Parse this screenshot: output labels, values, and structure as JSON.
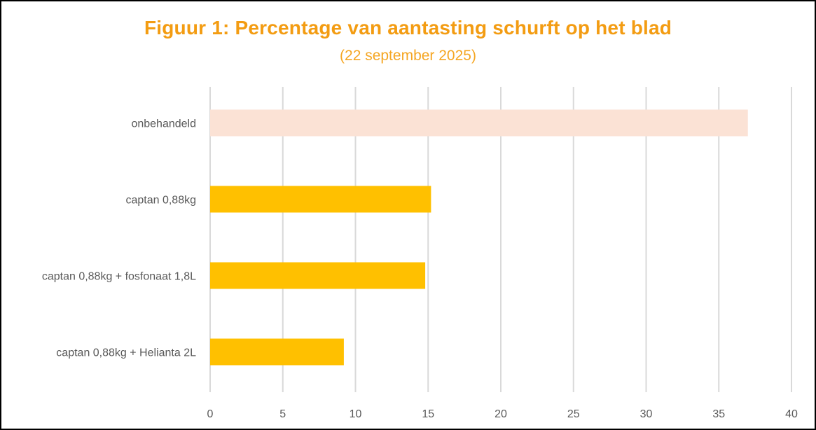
{
  "chart_data": {
    "type": "bar",
    "orientation": "horizontal",
    "title": "Figuur 1: Percentage van aantasting schurft op het blad",
    "subtitle": "(22 september 2025)",
    "categories": [
      "onbehandeld",
      "captan 0,88kg",
      "captan 0,88kg + fosfonaat 1,8L",
      "captan 0,88kg + Helianta 2L"
    ],
    "values": [
      37,
      15.2,
      14.8,
      9.2
    ],
    "bar_colors": [
      "#FBE2D5",
      "#FFC000",
      "#FFC000",
      "#FFC000"
    ],
    "xlim": [
      0,
      40
    ],
    "xticks": [
      "0",
      "5",
      "10",
      "15",
      "20",
      "25",
      "30",
      "35",
      "40"
    ],
    "grid": true,
    "legend": "none"
  },
  "colors": {
    "title": "#F39C12",
    "grid": "#D9D9D9",
    "label_text": "#595959"
  }
}
